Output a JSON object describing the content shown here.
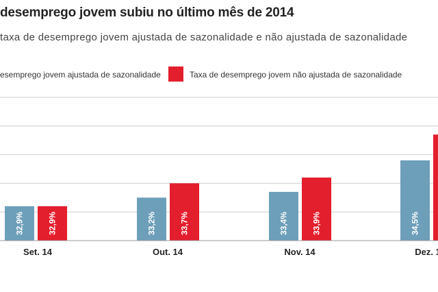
{
  "chart_data": {
    "type": "bar",
    "title": "desemprego jovem subiu no último mês de 2014",
    "subtitle": "taxa de desemprego jovem ajustada de sazonalidade e não ajustada de sazonalidade",
    "categories": [
      "Set. 14",
      "Out. 14",
      "Nov. 14",
      "Dez. 1"
    ],
    "series": [
      {
        "name": "esemprego jovem ajustada de sazonalidade",
        "color": "#6d9fba",
        "values": [
          32.9,
          33.2,
          33.4,
          34.5
        ],
        "labels": [
          "32,9%",
          "33,2%",
          "33,4%",
          "34,5%"
        ]
      },
      {
        "name": "Taxa de desemprego jovem não ajustada de sazonalidade",
        "color": "#e31e2d",
        "values": [
          32.9,
          33.7,
          33.9,
          35.4
        ],
        "labels": [
          "32,9%",
          "33,7%",
          "33,9%",
          ""
        ]
      }
    ],
    "ylim": [
      31.7,
      36.7
    ],
    "grid": true,
    "legend_position": "top"
  }
}
